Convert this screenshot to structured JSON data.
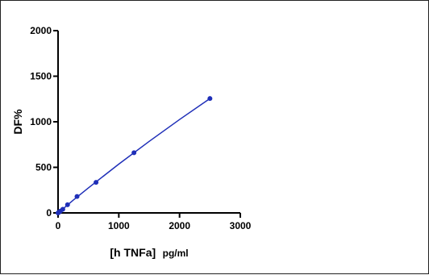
{
  "chart_data": {
    "type": "scatter",
    "title": "",
    "xlabel_main": "[h TNFa]",
    "xlabel_unit": "pg/ml",
    "ylabel": "DF%",
    "xlim": [
      0,
      3000
    ],
    "ylim": [
      0,
      2000
    ],
    "x_ticks": [
      "0",
      "1000",
      "2000",
      "3000"
    ],
    "y_ticks": [
      "0",
      "500",
      "1000",
      "1500",
      "2000"
    ],
    "grid": false,
    "legend": "none",
    "series": [
      {
        "points": [
          {
            "x": 0,
            "y": 0
          },
          {
            "x": 10,
            "y": 5
          },
          {
            "x": 20,
            "y": 10
          },
          {
            "x": 39,
            "y": 20
          },
          {
            "x": 78,
            "y": 40
          },
          {
            "x": 156,
            "y": 90
          },
          {
            "x": 312,
            "y": 180
          },
          {
            "x": 625,
            "y": 335
          },
          {
            "x": 1250,
            "y": 660
          },
          {
            "x": 2500,
            "y": 1255
          }
        ],
        "fit_curve": [
          {
            "x": 0,
            "y": 0
          },
          {
            "x": 100,
            "y": 55
          },
          {
            "x": 250,
            "y": 140
          },
          {
            "x": 500,
            "y": 275
          },
          {
            "x": 1000,
            "y": 535
          },
          {
            "x": 1500,
            "y": 785
          },
          {
            "x": 2000,
            "y": 1025
          },
          {
            "x": 2500,
            "y": 1255
          }
        ],
        "color": "#1f2fb8"
      }
    ]
  }
}
